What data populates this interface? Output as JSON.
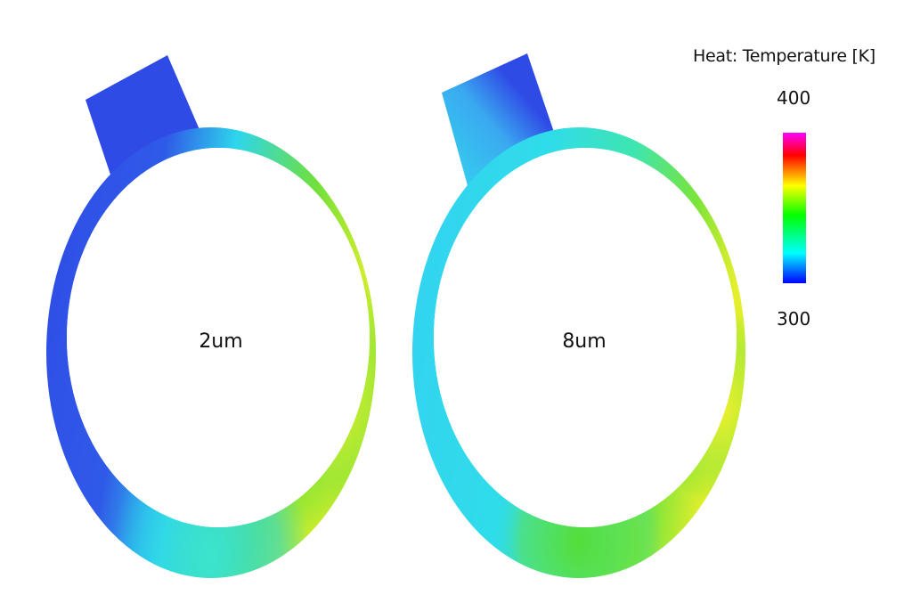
{
  "legend": {
    "title": "Heat: Temperature [K]",
    "max_label": "400",
    "min_label": "300",
    "colormap": [
      "#0000ff",
      "#00ffff",
      "#00ff00",
      "#ffff00",
      "#ff0000",
      "#ff00ff"
    ]
  },
  "cases": [
    {
      "label": "2um"
    },
    {
      "label": "8um"
    }
  ],
  "colors": {
    "cold": "#2f4be6",
    "cool": "#2fd8ea",
    "warm": "#55dd33",
    "hot": "#f2ee2a"
  }
}
